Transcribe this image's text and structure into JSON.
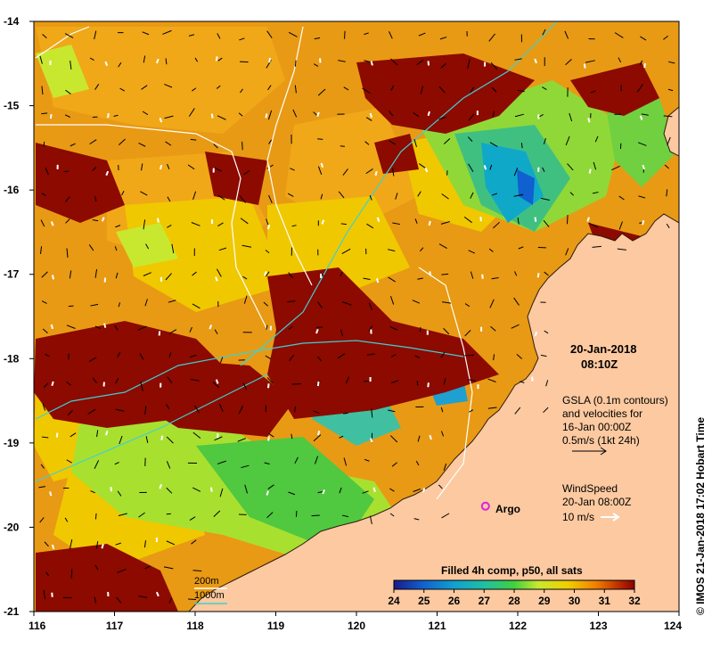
{
  "map": {
    "lon_ticks": [
      "116",
      "117",
      "118",
      "119",
      "120",
      "121",
      "122",
      "123",
      "124"
    ],
    "lat_ticks": [
      "-14",
      "-15",
      "-16",
      "-17",
      "-18",
      "-19",
      "-20",
      "-21"
    ],
    "lon_range": [
      116,
      124
    ],
    "lat_range": [
      -21,
      -14
    ]
  },
  "info": {
    "date": "20-Jan-2018",
    "time": "08:10Z",
    "gsla_line1": "GSLA (0.1m contours)",
    "gsla_line2": "and velocities for",
    "gsla_line3": "16-Jan 00:00Z",
    "gsla_line4": "0.5m/s (1kt 24h)",
    "wind_line1": "WindSpeed",
    "wind_line2": "20-Jan 08:00Z",
    "wind_line3": "10 m/s"
  },
  "bathy_legend": {
    "depth1": "200m",
    "depth2": "1000m",
    "color1": "#ffffff",
    "color2": "#40d0d0"
  },
  "argo": {
    "label": "Argo",
    "lon": 121.6,
    "lat": -19.75,
    "color": "#e020e0"
  },
  "colorbar": {
    "title": "Filled 4h comp, p50, all sats",
    "labels": [
      "24",
      "25",
      "26",
      "27",
      "28",
      "29",
      "30",
      "31",
      "32"
    ],
    "colors": [
      "#1a1a8c",
      "#1060d0",
      "#10a0d0",
      "#20c0a0",
      "#40d040",
      "#c8e830",
      "#f0d000",
      "#f08000",
      "#c03000",
      "#8c0000"
    ]
  },
  "credit": "© IMOS 21-Jan-2018 17:02 Hobart Time",
  "colors": {
    "land": "#fcc9a0",
    "frame": "#000000"
  }
}
